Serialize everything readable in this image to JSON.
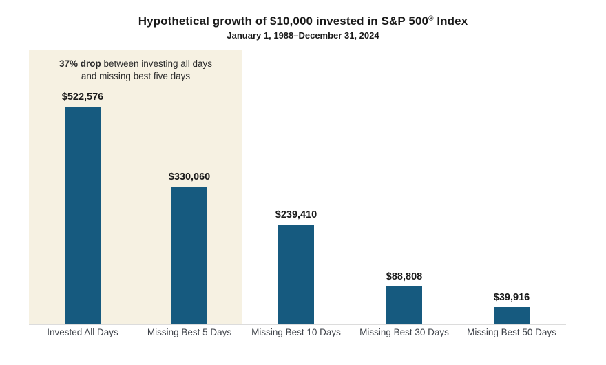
{
  "header": {
    "title_pre": "Hypothetical growth of $10,000 invested in S&P 500",
    "title_reg": "®",
    "title_post": " Index",
    "subtitle": "January 1, 1988–December 31, 2024"
  },
  "annotation": {
    "bold": "37% drop",
    "line1_rest": " between investing all days",
    "line2": "and missing best five days"
  },
  "chart_data": {
    "type": "bar",
    "title": "Hypothetical growth of $10,000 invested in S&P 500® Index",
    "subtitle": "January 1, 1988–December 31, 2024",
    "categories": [
      "Invested All Days",
      "Missing Best 5 Days",
      "Missing Best 10 Days",
      "Missing Best 30 Days",
      "Missing Best 50 Days"
    ],
    "values": [
      522576,
      330060,
      239410,
      88808,
      39916
    ],
    "value_labels": [
      "$522,576",
      "$330,060",
      "$239,410",
      "$88,808",
      "$39,916"
    ],
    "annotation": "37% drop between investing all days and missing best five days",
    "highlighted_categories": [
      "Invested All Days",
      "Missing Best 5 Days"
    ],
    "bar_color": "#165a7f",
    "highlight_color": "#f6f1e2",
    "axis_line_color": "#dcdcdc",
    "value_label_color": "#1a1a1a",
    "category_label_color": "#3f434a",
    "xlabel": "",
    "ylabel": "",
    "ylim": [
      0,
      550000
    ],
    "grid": false,
    "legend": false
  }
}
